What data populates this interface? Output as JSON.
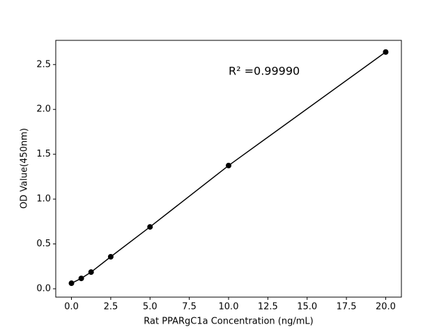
{
  "chart_data": {
    "type": "line",
    "x_label": "Rat PPARgC1a Concentration (ng/mL)",
    "y_label": "OD Value(450nm)",
    "annotation": "R² =0.99990",
    "x": [
      0,
      0.625,
      1.25,
      2.5,
      5,
      10,
      20
    ],
    "series": [
      {
        "color": "#000000",
        "values": [
          0.062,
          0.116,
          0.186,
          0.357,
          0.69,
          1.374,
          2.64
        ]
      }
    ],
    "xlim": [
      -1,
      21
    ],
    "ylim": [
      -0.093,
      2.77
    ],
    "xticks": [
      {
        "value": 0,
        "label": "0.0"
      },
      2.5,
      {
        "value": 5,
        "label": "5.0"
      },
      7.5,
      {
        "value": 10,
        "label": "10.0"
      },
      12.5,
      {
        "value": 15,
        "label": "15.0"
      },
      17.5,
      {
        "value": 20,
        "label": "20.0"
      }
    ],
    "yticks": [
      {
        "value": 0,
        "label": "0.0"
      },
      0.5,
      {
        "value": 1,
        "label": "1.0"
      },
      1.5,
      {
        "value": 2,
        "label": "2.0"
      },
      2.5
    ],
    "grid": false
  }
}
